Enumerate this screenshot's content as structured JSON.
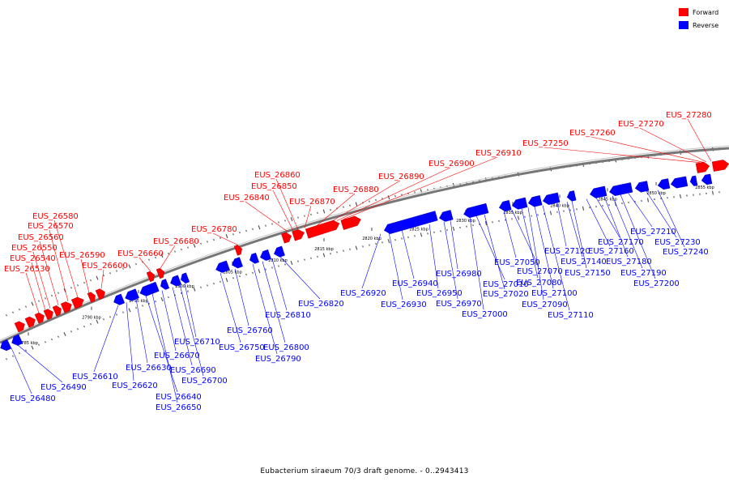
{
  "caption": "Eubacterium siraeum 70/3 draft genome. - 0..2943413",
  "legend": [
    {
      "label": "Forward",
      "color": "#ff0000"
    },
    {
      "label": "Reverse",
      "color": "#0000ff"
    }
  ],
  "colors": {
    "forward": "#ff0000",
    "reverse": "#0000ff",
    "backbone": "#888888",
    "leader": "#0000ff"
  },
  "ticks": [
    "2785 kbp",
    "2790 kbp",
    "2795 kbp",
    "2800 kbp",
    "2805 kbp",
    "2810 kbp",
    "2815 kbp",
    "2820 kbp",
    "2825 kbp",
    "2830 kbp",
    "2835 kbp",
    "2840 kbp",
    "2845 kbp",
    "2850 kbp",
    "2855 kbp"
  ],
  "forward_genes": [
    "EUS_26530",
    "EUS_26540",
    "EUS_26550",
    "EUS_26560",
    "EUS_26570",
    "EUS_26580",
    "EUS_26590",
    "EUS_26600",
    "EUS_26660",
    "EUS_26680",
    "EUS_26780",
    "EUS_26840",
    "EUS_26850",
    "EUS_26860",
    "EUS_26870",
    "EUS_26880",
    "EUS_26890",
    "EUS_26900",
    "EUS_26910",
    "EUS_27250",
    "EUS_27260",
    "EUS_27270",
    "EUS_27280"
  ],
  "reverse_genes": [
    "EUS_26480",
    "EUS_26490",
    "EUS_26610",
    "EUS_26620",
    "EUS_26630",
    "EUS_26640",
    "EUS_26650",
    "EUS_26670",
    "EUS_26690",
    "EUS_26700",
    "EUS_26710",
    "EUS_26750",
    "EUS_26760",
    "EUS_26790",
    "EUS_26800",
    "EUS_26810",
    "EUS_26820",
    "EUS_26920",
    "EUS_26930",
    "EUS_26940",
    "EUS_26950",
    "EUS_26970",
    "EUS_26980",
    "EUS_27000",
    "EUS_27010",
    "EUS_27020",
    "EUS_27050",
    "EUS_27070",
    "EUS_27080",
    "EUS_27090",
    "EUS_27100",
    "EUS_27110",
    "EUS_27120",
    "EUS_27140",
    "EUS_27150",
    "EUS_27160",
    "EUS_27170",
    "EUS_27180",
    "EUS_27190",
    "EUS_27200",
    "EUS_27210",
    "EUS_27230",
    "EUS_27240"
  ]
}
